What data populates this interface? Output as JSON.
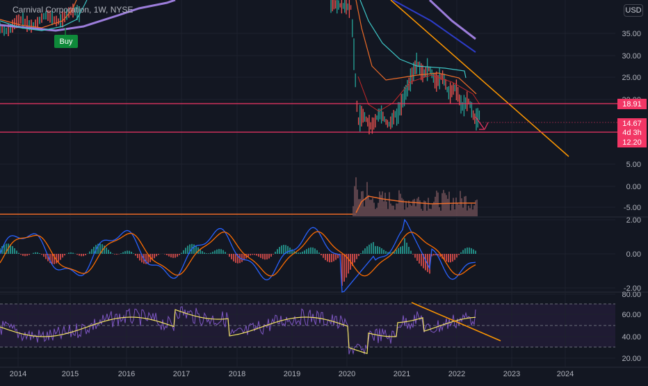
{
  "header": {
    "title": "Carnival Corporation, 1W, NYSE",
    "currency": "USD",
    "buy_label": "Buy"
  },
  "price_tags": [
    {
      "label": "18.91",
      "color": "#f23665"
    },
    {
      "label": "14.67",
      "color": "#f23665"
    },
    {
      "label": "4d 3h",
      "color": "#f23665"
    },
    {
      "label": "12.20",
      "color": "#f23665"
    }
  ],
  "chart_data": [
    {
      "type": "line",
      "panel": "price",
      "ylabels": [
        "35.00",
        "30.00",
        "25.00",
        "20.00"
      ],
      "horizontal_levels": [
        18.91,
        12.2
      ],
      "colors": {
        "levels": "#f23665",
        "trendline": "#ff9800",
        "ma_slow": "#9c7ddb",
        "ma_mid": "#3ec6c6",
        "ma_fast": "#ef6c28"
      }
    },
    {
      "type": "bar",
      "panel": "volume",
      "ylabels": [
        "5.00",
        "0.00",
        "-5.00"
      ]
    },
    {
      "type": "bar",
      "panel": "macd",
      "ylabels": [
        "2.00",
        "0.00",
        "-2.00"
      ],
      "colors": {
        "macd": "#2962ff",
        "signal": "#ff6d00",
        "hist_up": "#26a69a",
        "hist_down": "#ef5350"
      }
    },
    {
      "type": "line",
      "panel": "rsi",
      "ylabels": [
        "80.00",
        "60.00",
        "40.00",
        "20.00"
      ],
      "bands": [
        70,
        30
      ],
      "colors": {
        "rsi": "#7e57c2",
        "ma": "#f5e663",
        "trendline": "#ff9800"
      }
    }
  ],
  "x_axis": {
    "labels": [
      "2014",
      "2015",
      "2016",
      "2017",
      "2018",
      "2019",
      "2020",
      "2021",
      "2022",
      "2023",
      "2024"
    ]
  }
}
